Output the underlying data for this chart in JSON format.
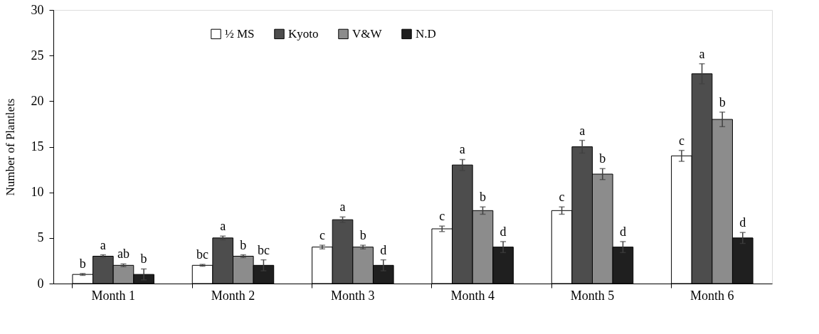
{
  "chart_data": {
    "type": "bar",
    "ylabel": "Number of Plantlets",
    "categories": [
      "Month 1",
      "Month 2",
      "Month 3",
      "Month 4",
      "Month 5",
      "Month 6"
    ],
    "ylim": [
      0,
      30
    ],
    "yticks": [
      0,
      5,
      10,
      15,
      20,
      25,
      30
    ],
    "grid": false,
    "legend": "top left",
    "series": [
      {
        "name": "½ MS",
        "color": "#ffffff",
        "values": [
          1,
          2,
          4,
          6,
          8,
          14
        ],
        "errors": [
          0.1,
          0.1,
          0.2,
          0.3,
          0.4,
          0.6
        ],
        "value_labels": [
          "b",
          "bc",
          "c",
          "c",
          "c",
          "c"
        ]
      },
      {
        "name": "Kyoto",
        "color": "#4d4d4d",
        "values": [
          3,
          5,
          7,
          13,
          15,
          23
        ],
        "errors": [
          0.15,
          0.2,
          0.3,
          0.6,
          0.7,
          1.1
        ],
        "value_labels": [
          "a",
          "a",
          "a",
          "a",
          "a",
          "a"
        ]
      },
      {
        "name": "V&W",
        "color": "#8c8c8c",
        "values": [
          2,
          3,
          4,
          8,
          12,
          18
        ],
        "errors": [
          0.15,
          0.15,
          0.2,
          0.4,
          0.6,
          0.8
        ],
        "value_labels": [
          "ab",
          "b",
          "b",
          "b",
          "b",
          "b"
        ]
      },
      {
        "name": "N.D",
        "color": "#1f1f1f",
        "values": [
          1,
          2,
          2,
          4,
          4,
          5
        ],
        "errors": [
          0.6,
          0.6,
          0.6,
          0.6,
          0.6,
          0.6
        ],
        "value_labels": [
          "b",
          "bc",
          "d",
          "d",
          "d",
          "d"
        ]
      }
    ]
  }
}
